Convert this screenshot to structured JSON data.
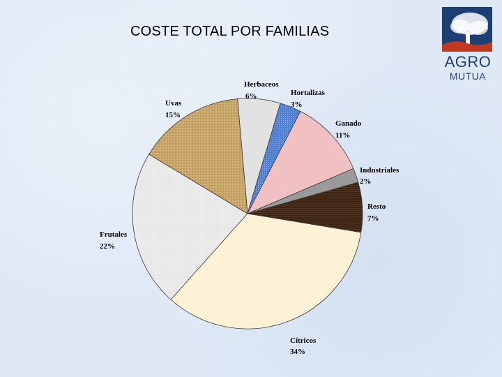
{
  "header": {
    "title": "COSTE TOTAL POR FAMILIAS"
  },
  "logo": {
    "line1": "AGRO",
    "line2": "MUTUA",
    "color": "#1e3f73",
    "accent": "#c0391e"
  },
  "chart_data": {
    "type": "pie",
    "title": "COSTE TOTAL POR FAMILIAS",
    "slices": [
      {
        "name": "Herbaceos",
        "label": "6%",
        "value": 6,
        "color": "#e2e2e2"
      },
      {
        "name": "Hortalizas",
        "label": "3%",
        "value": 3,
        "color": "#4f7fd1"
      },
      {
        "name": "Ganado",
        "label": "11%",
        "value": 11,
        "color": "#f0c0c3"
      },
      {
        "name": "Industriales",
        "label": "2%",
        "value": 2,
        "color": "#9a9a9a"
      },
      {
        "name": "Resto",
        "label": "7%",
        "value": 7,
        "color": "#3b2414"
      },
      {
        "name": "Cítricos",
        "label": "34%",
        "value": 34,
        "color": "#fdf2d6"
      },
      {
        "name": "Frutales",
        "label": "22%",
        "value": 22,
        "color": "#ececec"
      },
      {
        "name": "Uvas",
        "label": "15%",
        "value": 15,
        "color": "#c9a76a"
      }
    ]
  }
}
